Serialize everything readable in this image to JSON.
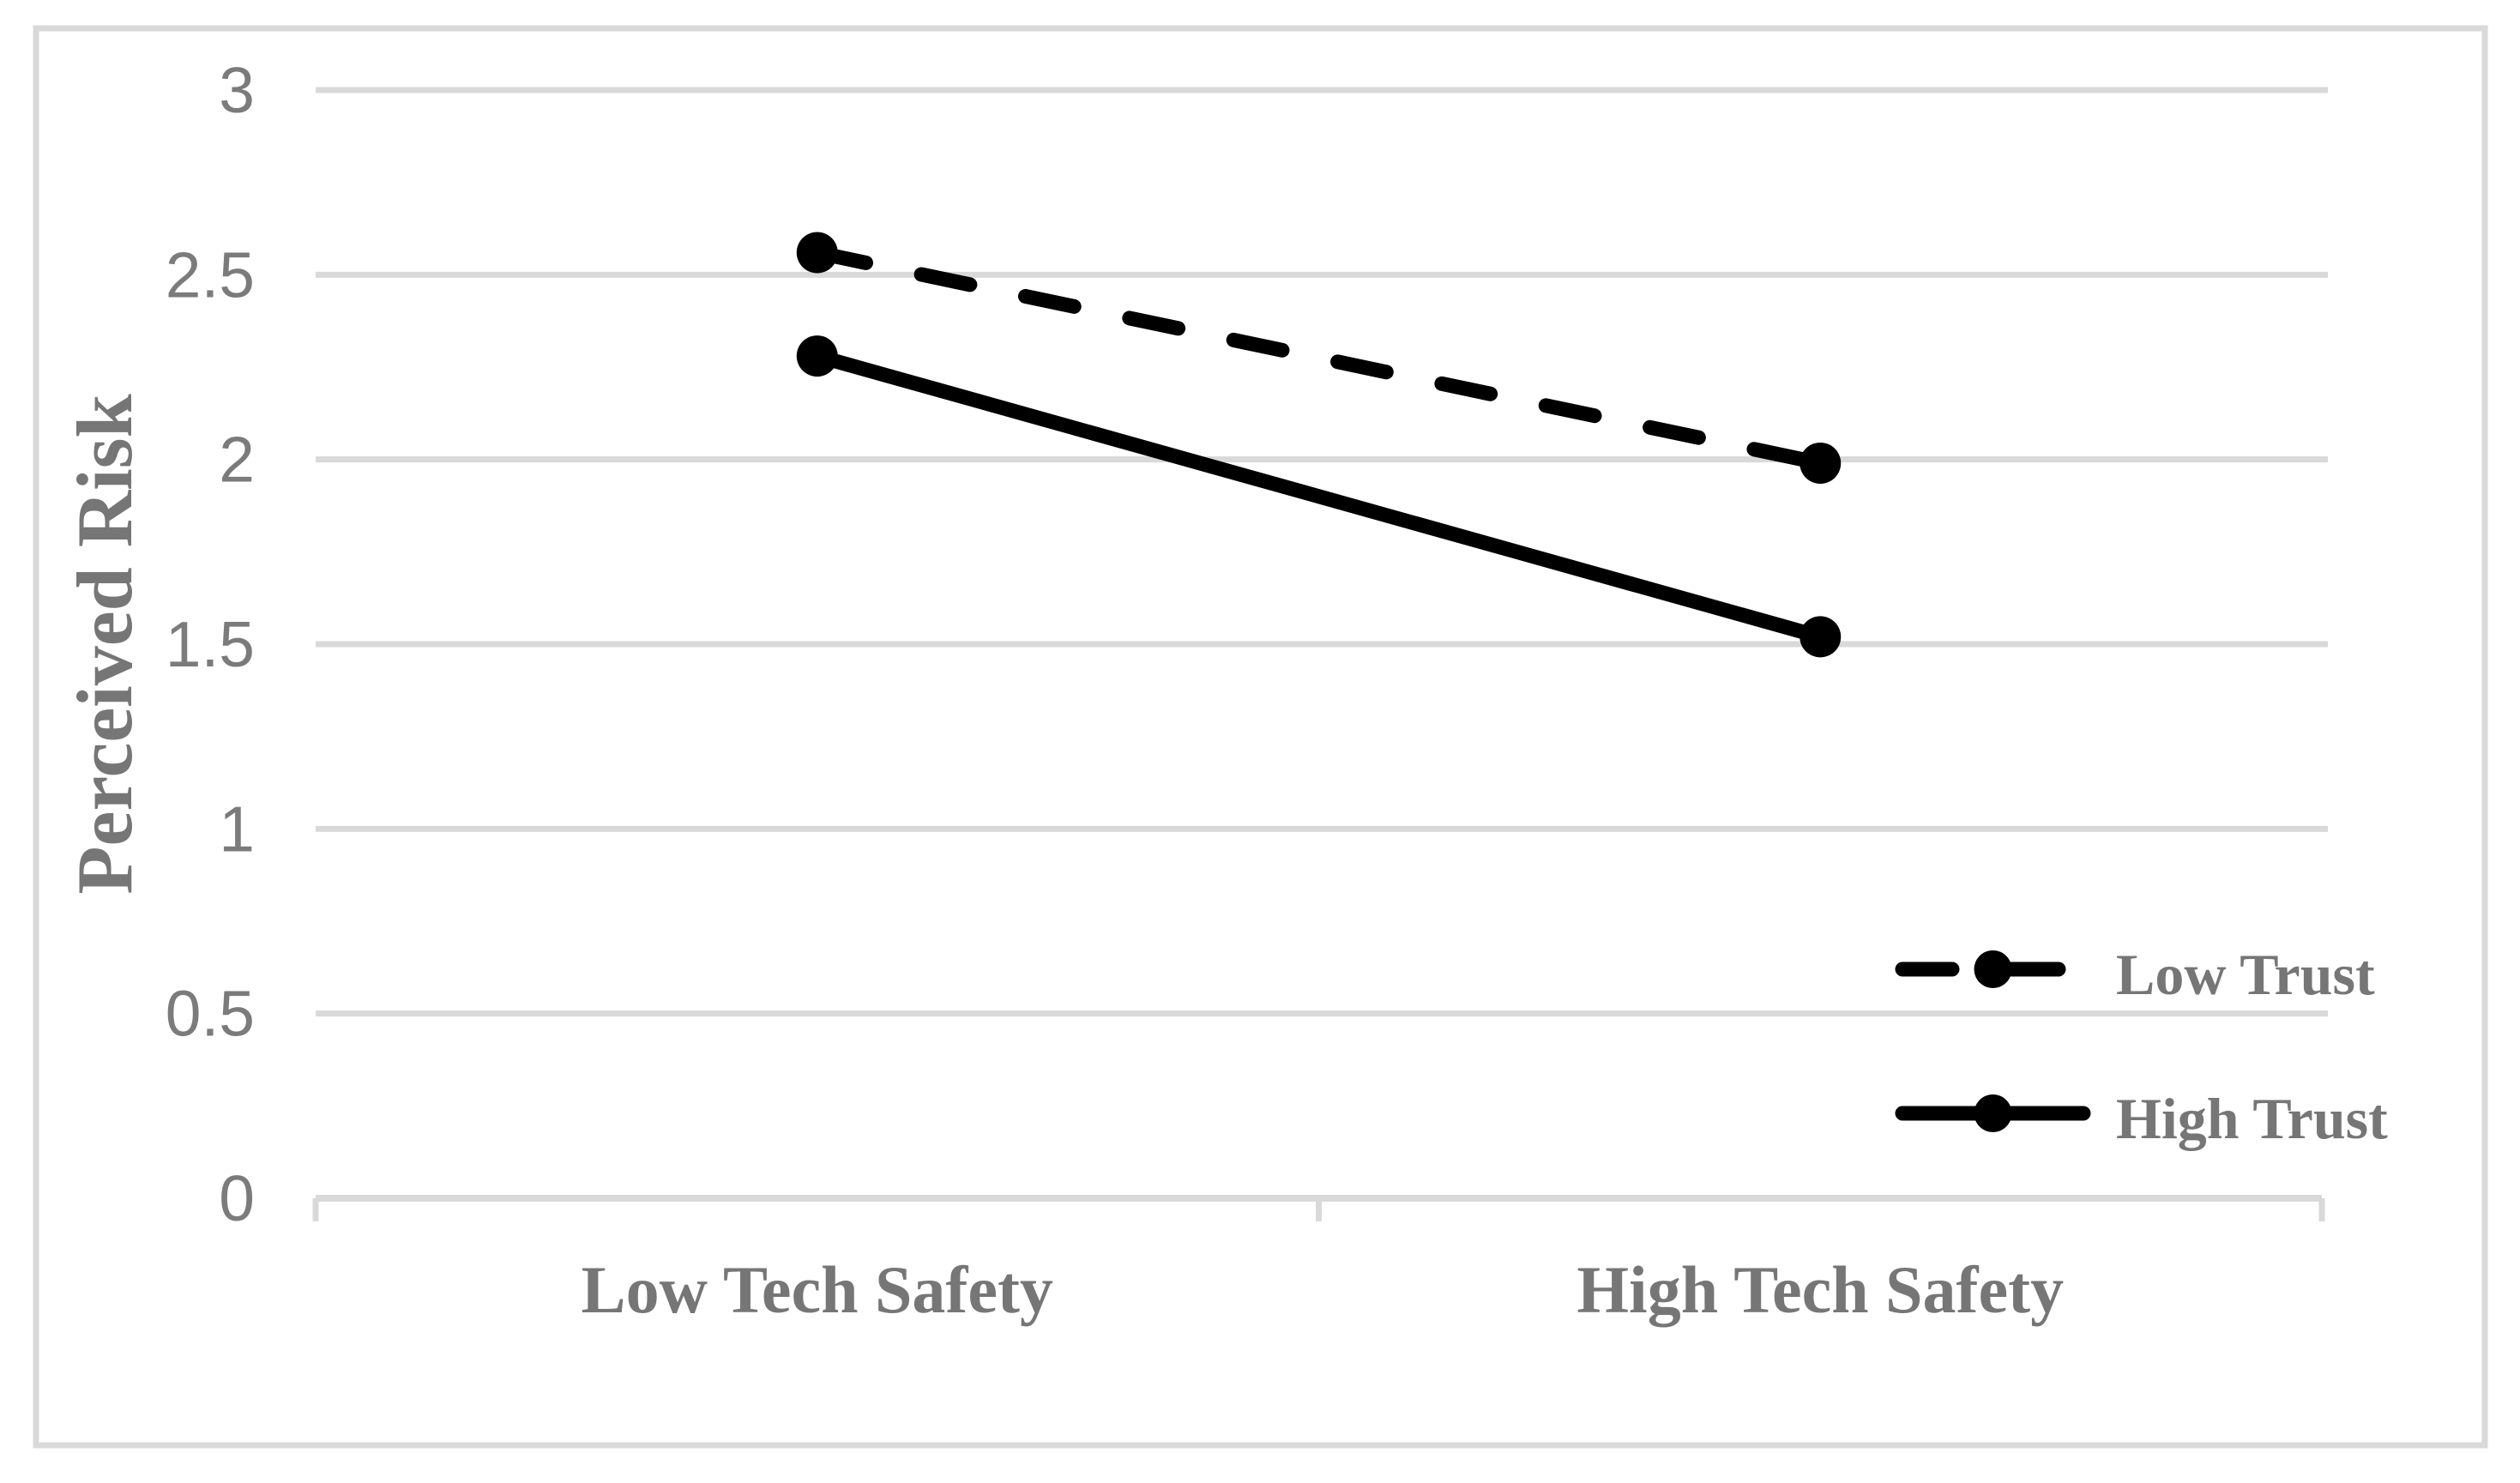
{
  "figure": {
    "background": "#ffffff",
    "border_color": "#d9d9d9"
  },
  "chart_data": {
    "type": "line",
    "title": "",
    "xlabel": "",
    "ylabel": "Perceived Risk",
    "categories": [
      "Low Tech Safety",
      "High Tech Safety"
    ],
    "series": [
      {
        "name": "Low Trust",
        "values": [
          2.56,
          1.99
        ],
        "line_style": "dashed",
        "color": "#000000",
        "marker": "circle"
      },
      {
        "name": "High Trust",
        "values": [
          2.28,
          1.52
        ],
        "line_style": "solid",
        "color": "#000000",
        "marker": "circle"
      }
    ],
    "ylim": [
      0,
      3
    ],
    "ytick_step": 0.5,
    "yticks": [
      "0",
      "0.5",
      "1",
      "1.5",
      "2",
      "2.5",
      "3"
    ],
    "grid": "horizontal",
    "gridline_color": "#d9d9d9",
    "axis_color": "#d9d9d9",
    "text_color": "#767676",
    "series_color": "#000000",
    "legend": {
      "position": "inside-lower-right",
      "entries": [
        "Low Trust",
        "High Trust"
      ]
    }
  }
}
